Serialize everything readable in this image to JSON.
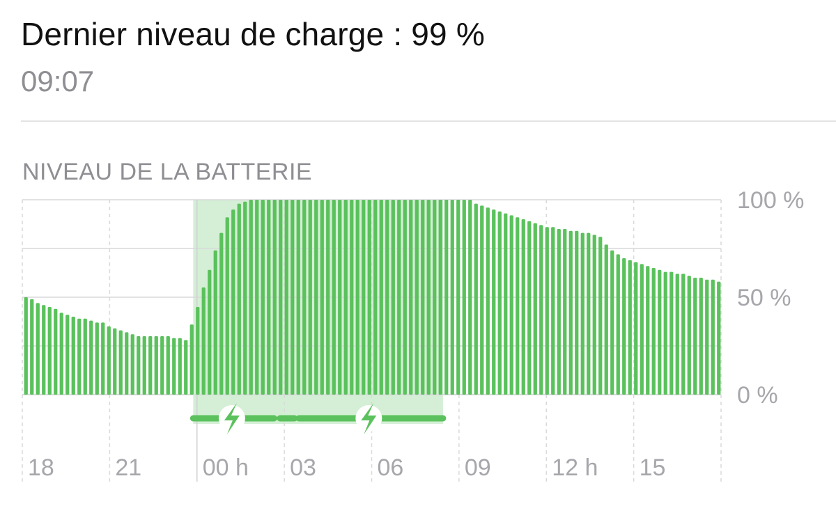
{
  "header": {
    "headline": "Dernier niveau de charge : 99 %",
    "time": "09:07"
  },
  "section_title": "NIVEAU DE LA BATTERIE",
  "colors": {
    "bar": "#5ac15c",
    "charging_band": "#d4efd5",
    "grid": "#d9d9dc",
    "label": "#a6a6ab"
  },
  "chart_data": {
    "type": "bar",
    "title": "NIVEAU DE LA BATTERIE",
    "ylabel": "",
    "xlabel": "",
    "ylim": [
      0,
      100
    ],
    "y_ticks": [
      {
        "value": 100,
        "label": "100 %"
      },
      {
        "value": 50,
        "label": "50 %"
      },
      {
        "value": 0,
        "label": "0 %"
      }
    ],
    "x_tick_labels": [
      "18",
      "21",
      "00 h",
      "03",
      "06",
      "09",
      "12 h",
      "15"
    ],
    "x_tick_hours": [
      0,
      3,
      6,
      9,
      12,
      15,
      18,
      21
    ],
    "x_range_hours": [
      0,
      24
    ],
    "bar_interval_minutes": 15,
    "grid": true,
    "charging_periods": [
      {
        "start_hours": 5.87,
        "end_hours": 14.45
      }
    ],
    "charging_segments": [
      {
        "start_hours": 5.87,
        "end_hours": 8.65
      },
      {
        "start_hours": 8.85,
        "end_hours": 9.35
      },
      {
        "start_hours": 9.5,
        "end_hours": 14.45
      }
    ],
    "charging_icons_at_hours": [
      7.2,
      11.9
    ],
    "values": [
      50,
      49,
      47,
      46,
      45,
      44,
      42,
      41,
      40,
      39,
      39,
      38,
      37,
      37,
      35,
      34,
      33,
      32,
      31,
      30,
      30,
      30,
      30,
      30,
      30,
      29,
      29,
      28,
      36,
      45,
      55,
      64,
      74,
      83,
      91,
      95,
      98,
      99,
      100,
      100,
      100,
      100,
      100,
      100,
      100,
      100,
      100,
      100,
      100,
      100,
      100,
      100,
      100,
      100,
      100,
      100,
      100,
      100,
      100,
      100,
      100,
      100,
      100,
      100,
      100,
      100,
      100,
      100,
      100,
      100,
      100,
      100,
      100,
      100,
      100,
      100,
      98,
      97,
      96,
      95,
      94,
      93,
      92,
      91,
      90,
      89,
      88,
      87,
      86,
      86,
      85,
      85,
      84,
      84,
      83,
      83,
      82,
      81,
      77,
      74,
      72,
      70,
      69,
      68,
      67,
      66,
      65,
      64,
      63,
      63,
      62,
      62,
      61,
      60,
      60,
      59,
      59,
      58
    ]
  }
}
